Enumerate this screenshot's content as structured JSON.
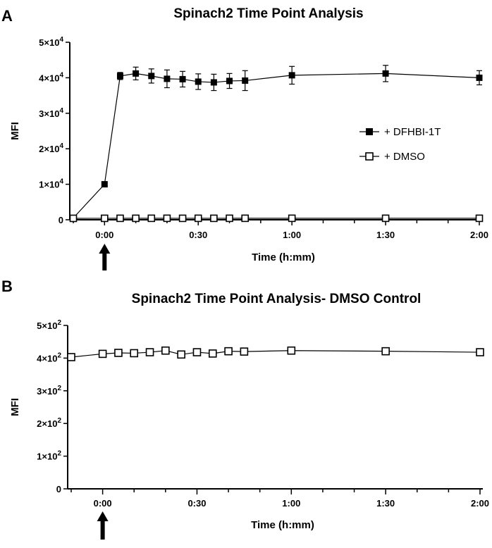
{
  "chart_data": [
    {
      "panel": "A",
      "type": "line",
      "title": "Spinach2 Time Point Analysis",
      "xlabel": "Time (h:mm)",
      "ylabel": "MFI",
      "xlim": [
        -10,
        120
      ],
      "ylim": [
        0,
        50000
      ],
      "x_ticks": [
        0,
        30,
        60,
        90,
        120
      ],
      "x_tick_labels": [
        "0:00",
        "0:30",
        "1:00",
        "1:30",
        "2:00"
      ],
      "y_ticks": [
        0,
        10000,
        20000,
        30000,
        40000,
        50000
      ],
      "y_tick_labels": [
        {
          "base": "0",
          "exp": ""
        },
        {
          "base": "1×10",
          "exp": "4"
        },
        {
          "base": "2×10",
          "exp": "4"
        },
        {
          "base": "3×10",
          "exp": "4"
        },
        {
          "base": "4×10",
          "exp": "4"
        },
        {
          "base": "5×10",
          "exp": "4"
        }
      ],
      "legend_position": "right",
      "annotation": "arrow below x = 0:00",
      "series": [
        {
          "name": "+ DFHBI-1T",
          "marker": "filled-square",
          "x": [
            -10,
            0,
            5,
            10,
            15,
            20,
            25,
            30,
            35,
            40,
            45,
            60,
            90,
            120
          ],
          "y": [
            500,
            10000,
            40500,
            41200,
            40500,
            39700,
            39600,
            38900,
            38700,
            39100,
            39200,
            40700,
            41200,
            40000
          ],
          "err": [
            300,
            300,
            1000,
            1800,
            2000,
            2500,
            2200,
            2200,
            2300,
            2100,
            2800,
            2500,
            2300,
            2000
          ]
        },
        {
          "name": "+ DMSO",
          "marker": "open-square",
          "x": [
            -10,
            0,
            5,
            10,
            15,
            20,
            25,
            30,
            35,
            40,
            45,
            60,
            90,
            120
          ],
          "y": [
            400,
            410,
            415,
            415,
            418,
            422,
            410,
            418,
            413,
            420,
            420,
            422,
            420,
            418
          ],
          "err": []
        }
      ]
    },
    {
      "panel": "B",
      "type": "line",
      "title": "Spinach2 Time Point Analysis- DMSO Control",
      "xlabel": "Time (h:mm)",
      "ylabel": "MFI",
      "xlim": [
        -10,
        120
      ],
      "ylim": [
        0,
        500
      ],
      "x_ticks": [
        0,
        30,
        60,
        90,
        120
      ],
      "x_tick_labels": [
        "0:00",
        "0:30",
        "1:00",
        "1:30",
        "2:00"
      ],
      "y_ticks": [
        0,
        100,
        200,
        300,
        400,
        500
      ],
      "y_tick_labels": [
        {
          "base": "0",
          "exp": ""
        },
        {
          "base": "1×10",
          "exp": "2"
        },
        {
          "base": "2×10",
          "exp": "2"
        },
        {
          "base": "3×10",
          "exp": "2"
        },
        {
          "base": "4×10",
          "exp": "2"
        },
        {
          "base": "5×10",
          "exp": "2"
        }
      ],
      "annotation": "arrow below x = 0:00",
      "series": [
        {
          "name": "+ DMSO",
          "marker": "open-square",
          "x": [
            -10,
            0,
            5,
            10,
            15,
            20,
            25,
            30,
            35,
            40,
            45,
            60,
            90,
            120
          ],
          "y": [
            403,
            413,
            416,
            415,
            418,
            423,
            411,
            418,
            414,
            421,
            420,
            423,
            421,
            418
          ],
          "err": []
        }
      ]
    }
  ]
}
